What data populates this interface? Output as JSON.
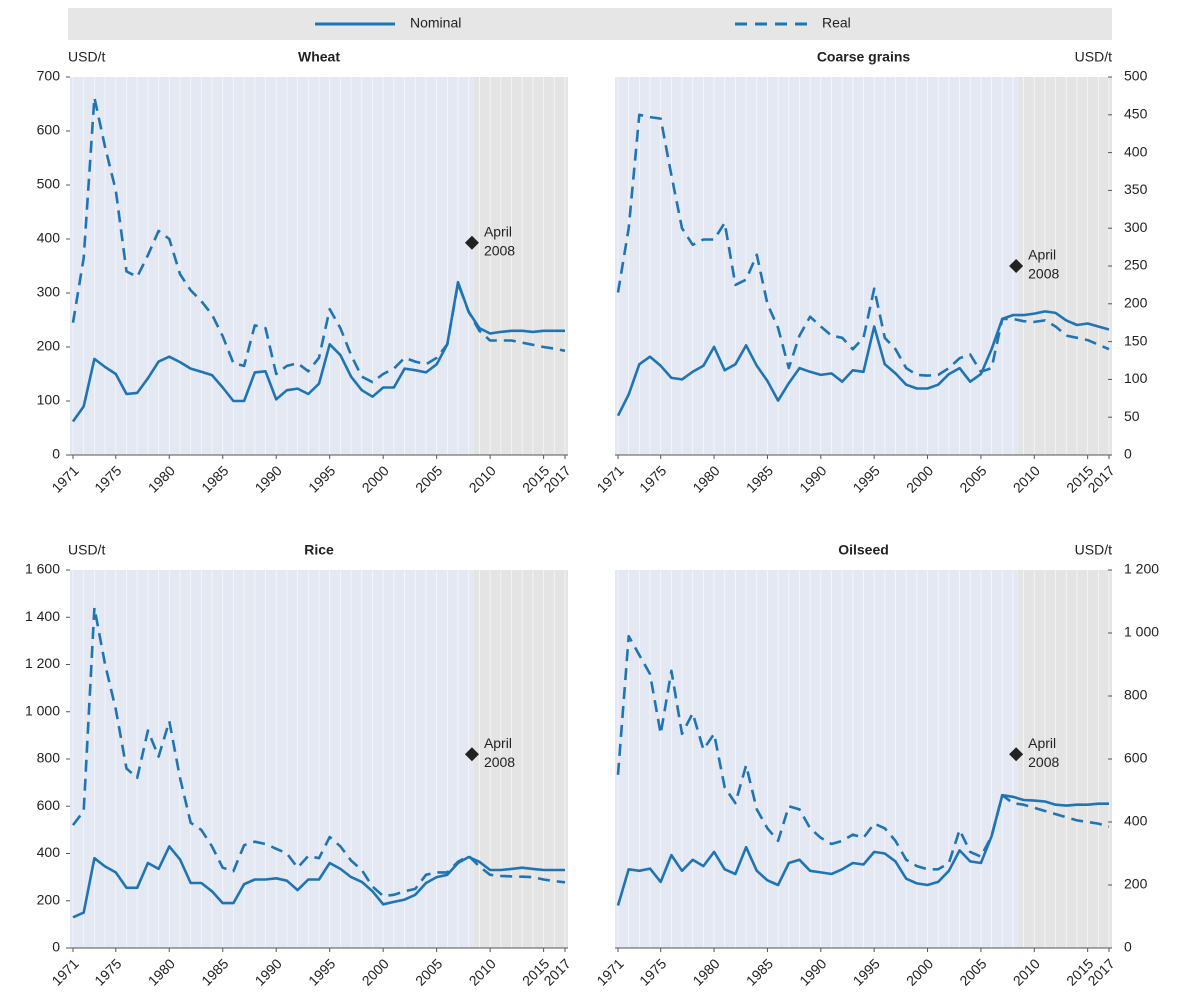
{
  "chart_data": [
    {
      "type": "line",
      "title": "Wheat",
      "unit": "USD/t",
      "y_side": "left",
      "x": [
        1971,
        1972,
        1973,
        1974,
        1975,
        1976,
        1977,
        1978,
        1979,
        1980,
        1981,
        1982,
        1983,
        1984,
        1985,
        1986,
        1987,
        1988,
        1989,
        1990,
        1991,
        1992,
        1993,
        1994,
        1995,
        1996,
        1997,
        1998,
        1999,
        2000,
        2001,
        2002,
        2003,
        2004,
        2005,
        2006,
        2007,
        2008,
        2009,
        2010,
        2011,
        2012,
        2013,
        2014,
        2015,
        2016,
        2017
      ],
      "xlim": [
        1971,
        2017
      ],
      "xticks": [
        1971,
        1975,
        1980,
        1985,
        1990,
        1995,
        2000,
        2005,
        2010,
        2015,
        2017
      ],
      "ylim": [
        0,
        700
      ],
      "yticks": [
        0,
        100,
        200,
        300,
        400,
        500,
        600,
        700
      ],
      "shaded_from": 2008.5,
      "series": [
        {
          "name": "Nominal",
          "color": "#1f74b4",
          "dash": false,
          "values": [
            62,
            90,
            178,
            163,
            150,
            113,
            115,
            142,
            173,
            182,
            172,
            160,
            154,
            148,
            125,
            100,
            100,
            153,
            155,
            103,
            120,
            123,
            113,
            132,
            205,
            185,
            145,
            120,
            108,
            125,
            125,
            160,
            157,
            153,
            168,
            205,
            320,
            265,
            235,
            225,
            228,
            230,
            230,
            228,
            230,
            230,
            230
          ]
        },
        {
          "name": "Real",
          "color": "#1f74b4",
          "dash": true,
          "values": [
            245,
            365,
            662,
            570,
            490,
            340,
            330,
            370,
            415,
            400,
            335,
            305,
            285,
            260,
            220,
            170,
            165,
            240,
            235,
            150,
            165,
            170,
            155,
            180,
            270,
            235,
            185,
            145,
            135,
            150,
            160,
            180,
            173,
            168,
            180,
            205,
            318,
            265,
            230,
            212,
            212,
            212,
            208,
            204,
            200,
            197,
            193
          ]
        }
      ],
      "annotation": {
        "lines": [
          "April",
          "2008"
        ],
        "x": 2008.3,
        "y": 393
      }
    },
    {
      "type": "line",
      "title": "Coarse grains",
      "unit": "USD/t",
      "y_side": "right",
      "x": [
        1971,
        1972,
        1973,
        1974,
        1975,
        1976,
        1977,
        1978,
        1979,
        1980,
        1981,
        1982,
        1983,
        1984,
        1985,
        1986,
        1987,
        1988,
        1989,
        1990,
        1991,
        1992,
        1993,
        1994,
        1995,
        1996,
        1997,
        1998,
        1999,
        2000,
        2001,
        2002,
        2003,
        2004,
        2005,
        2006,
        2007,
        2008,
        2009,
        2010,
        2011,
        2012,
        2013,
        2014,
        2015,
        2016,
        2017
      ],
      "xlim": [
        1971,
        2017
      ],
      "xticks": [
        1971,
        1975,
        1980,
        1985,
        1990,
        1995,
        2000,
        2005,
        2010,
        2015,
        2017
      ],
      "ylim": [
        0,
        500
      ],
      "yticks": [
        0,
        50,
        100,
        150,
        200,
        250,
        300,
        350,
        400,
        450,
        500
      ],
      "shaded_from": 2008.5,
      "series": [
        {
          "color": "#1f74b4",
          "dash": false,
          "values": [
            52,
            80,
            120,
            130,
            118,
            102,
            100,
            110,
            118,
            143,
            112,
            120,
            145,
            118,
            98,
            72,
            95,
            115,
            110,
            106,
            108,
            97,
            112,
            110,
            170,
            120,
            108,
            93,
            88,
            88,
            93,
            107,
            115,
            97,
            107,
            140,
            180,
            185,
            185,
            187,
            190,
            188,
            178,
            172,
            174,
            170,
            166
          ]
        },
        {
          "color": "#1f74b4",
          "dash": true,
          "values": [
            215,
            300,
            450,
            447,
            445,
            370,
            300,
            278,
            285,
            285,
            307,
            225,
            232,
            265,
            200,
            168,
            115,
            158,
            183,
            170,
            158,
            155,
            140,
            155,
            220,
            155,
            140,
            115,
            106,
            105,
            106,
            115,
            128,
            133,
            110,
            115,
            180,
            180,
            177,
            176,
            178,
            170,
            158,
            155,
            152,
            146,
            140
          ]
        }
      ],
      "annotation": {
        "lines": [
          "April",
          "2008"
        ],
        "x": 2008.3,
        "y": 250
      }
    },
    {
      "type": "line",
      "title": "Rice",
      "unit": "USD/t",
      "y_side": "left",
      "x": [
        1971,
        1972,
        1973,
        1974,
        1975,
        1976,
        1977,
        1978,
        1979,
        1980,
        1981,
        1982,
        1983,
        1984,
        1985,
        1986,
        1987,
        1988,
        1989,
        1990,
        1991,
        1992,
        1993,
        1994,
        1995,
        1996,
        1997,
        1998,
        1999,
        2000,
        2001,
        2002,
        2003,
        2004,
        2005,
        2006,
        2007,
        2008,
        2009,
        2010,
        2011,
        2012,
        2013,
        2014,
        2015,
        2016,
        2017
      ],
      "xlim": [
        1971,
        2017
      ],
      "xticks": [
        1971,
        1975,
        1980,
        1985,
        1990,
        1995,
        2000,
        2005,
        2010,
        2015,
        2017
      ],
      "ylim": [
        0,
        1600
      ],
      "yticks": [
        0,
        200,
        400,
        600,
        800,
        {
          "value": 1000,
          "label": "1 000"
        },
        {
          "value": 1200,
          "label": "1 200"
        },
        {
          "value": 1400,
          "label": "1 400"
        },
        {
          "value": 1600,
          "label": "1 600"
        }
      ],
      "shaded_from": 2008.5,
      "series": [
        {
          "color": "#1f74b4",
          "dash": false,
          "values": [
            130,
            150,
            380,
            345,
            320,
            255,
            255,
            360,
            335,
            430,
            375,
            275,
            275,
            240,
            190,
            190,
            270,
            290,
            290,
            295,
            285,
            245,
            290,
            290,
            360,
            335,
            300,
            280,
            240,
            185,
            195,
            205,
            225,
            275,
            300,
            310,
            360,
            385,
            365,
            330,
            330,
            335,
            340,
            335,
            330,
            330,
            330
          ]
        },
        {
          "color": "#1f74b4",
          "dash": true,
          "values": [
            520,
            580,
            1440,
            1200,
            1010,
            760,
            720,
            920,
            810,
            960,
            720,
            530,
            500,
            430,
            340,
            325,
            435,
            450,
            440,
            420,
            400,
            340,
            390,
            380,
            470,
            430,
            370,
            330,
            260,
            220,
            225,
            240,
            250,
            310,
            320,
            320,
            365,
            390,
            345,
            310,
            305,
            303,
            302,
            300,
            290,
            283,
            278
          ]
        }
      ],
      "annotation": {
        "lines": [
          "April",
          "2008"
        ],
        "x": 2008.3,
        "y": 820
      }
    },
    {
      "type": "line",
      "title": "Oilseed",
      "unit": "USD/t",
      "y_side": "right",
      "x": [
        1971,
        1972,
        1973,
        1974,
        1975,
        1976,
        1977,
        1978,
        1979,
        1980,
        1981,
        1982,
        1983,
        1984,
        1985,
        1986,
        1987,
        1988,
        1989,
        1990,
        1991,
        1992,
        1993,
        1994,
        1995,
        1996,
        1997,
        1998,
        1999,
        2000,
        2001,
        2002,
        2003,
        2004,
        2005,
        2006,
        2007,
        2008,
        2009,
        2010,
        2011,
        2012,
        2013,
        2014,
        2015,
        2016,
        2017
      ],
      "xlim": [
        1971,
        2017
      ],
      "xticks": [
        1971,
        1975,
        1980,
        1985,
        1990,
        1995,
        2000,
        2005,
        2010,
        2015,
        2017
      ],
      "ylim": [
        0,
        1200
      ],
      "yticks": [
        0,
        200,
        400,
        600,
        800,
        {
          "value": 1000,
          "label": "1 000"
        },
        {
          "value": 1200,
          "label": "1 200"
        }
      ],
      "shaded_from": 2008.5,
      "series": [
        {
          "color": "#1f74b4",
          "dash": false,
          "values": [
            135,
            250,
            245,
            252,
            210,
            295,
            245,
            280,
            260,
            305,
            250,
            235,
            320,
            245,
            215,
            200,
            270,
            280,
            245,
            240,
            235,
            250,
            270,
            265,
            305,
            300,
            275,
            220,
            205,
            200,
            210,
            245,
            310,
            275,
            270,
            355,
            485,
            480,
            470,
            468,
            465,
            455,
            452,
            455,
            455,
            458,
            458
          ]
        },
        {
          "color": "#1f74b4",
          "dash": true,
          "values": [
            550,
            990,
            930,
            870,
            680,
            880,
            680,
            745,
            630,
            680,
            510,
            460,
            580,
            440,
            380,
            340,
            450,
            440,
            380,
            350,
            330,
            340,
            360,
            350,
            395,
            380,
            340,
            280,
            260,
            250,
            250,
            270,
            375,
            305,
            290,
            355,
            485,
            460,
            455,
            445,
            435,
            425,
            415,
            405,
            400,
            395,
            385
          ]
        }
      ],
      "annotation": {
        "lines": [
          "April",
          "2008"
        ],
        "x": 2008.3,
        "y": 615
      }
    }
  ]
}
